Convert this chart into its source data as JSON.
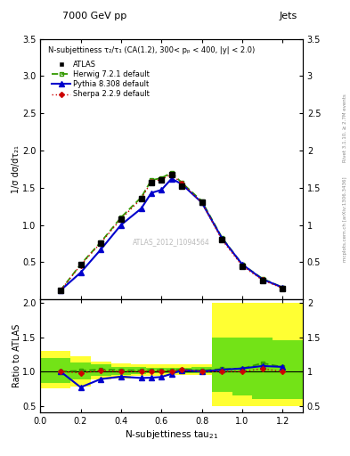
{
  "title_top": "7000 GeV pp",
  "title_right": "Jets",
  "annotation": "N-subjettiness τ₂/τ₁ (CA(1.2), 300< pₚ < 400, |y| < 2.0)",
  "watermark": "ATLAS_2012_I1094564",
  "right_label_top": "Rivet 3.1.10, ≥ 2.7M events",
  "right_label_bot": "mcplots.cern.ch [arXiv:1306.3436]",
  "xlabel": "N-subjettiness tau",
  "xlabel_sub": "21",
  "ylabel_main": "1/σ dσ/dτ₂₁",
  "ylabel_ratio": "Ratio to ATLAS",
  "x_data": [
    0.1,
    0.2,
    0.3,
    0.4,
    0.5,
    0.55,
    0.6,
    0.65,
    0.7,
    0.8,
    0.9,
    1.0,
    1.1,
    1.2
  ],
  "atlas_y": [
    0.12,
    0.47,
    0.75,
    1.08,
    1.35,
    1.57,
    1.6,
    1.68,
    1.52,
    1.3,
    0.8,
    0.45,
    0.25,
    0.15
  ],
  "herwig_y": [
    0.12,
    0.47,
    0.77,
    1.1,
    1.37,
    1.6,
    1.63,
    1.7,
    1.57,
    1.32,
    0.83,
    0.47,
    0.28,
    0.16
  ],
  "pythia_y": [
    0.12,
    0.36,
    0.67,
    1.0,
    1.22,
    1.43,
    1.47,
    1.62,
    1.55,
    1.3,
    0.82,
    0.47,
    0.27,
    0.16
  ],
  "sherpa_y": [
    0.12,
    0.46,
    0.76,
    1.08,
    1.35,
    1.58,
    1.61,
    1.68,
    1.56,
    1.3,
    0.8,
    0.45,
    0.26,
    0.15
  ],
  "herwig_ratio": [
    1.0,
    1.01,
    1.03,
    1.02,
    1.015,
    1.02,
    1.02,
    1.012,
    1.033,
    1.015,
    1.037,
    1.044,
    1.12,
    1.067
  ],
  "pythia_ratio": [
    1.0,
    0.77,
    0.89,
    0.925,
    0.905,
    0.91,
    0.92,
    0.965,
    1.02,
    1.0,
    1.025,
    1.044,
    1.08,
    1.067
  ],
  "sherpa_ratio": [
    1.0,
    0.98,
    1.01,
    1.0,
    1.0,
    1.006,
    1.006,
    1.0,
    1.026,
    1.0,
    1.0,
    1.0,
    1.04,
    1.0
  ],
  "x_band": [
    0.05,
    0.15,
    0.25,
    0.35,
    0.45,
    0.525,
    0.575,
    0.625,
    0.675,
    0.75,
    0.85,
    0.95,
    1.05,
    1.15,
    1.25
  ],
  "x_band_edges": [
    0.0,
    0.15,
    0.25,
    0.35,
    0.45,
    0.525,
    0.575,
    0.625,
    0.675,
    0.75,
    0.85,
    0.95,
    1.05,
    1.15,
    1.3
  ],
  "yellow_lo": [
    0.75,
    0.78,
    0.88,
    0.9,
    0.93,
    0.94,
    0.94,
    0.95,
    0.95,
    0.95,
    0.5,
    0.5,
    0.5,
    0.5
  ],
  "yellow_hi": [
    1.3,
    1.22,
    1.15,
    1.12,
    1.1,
    1.1,
    1.1,
    1.1,
    1.1,
    1.1,
    2.0,
    2.0,
    2.0,
    2.0
  ],
  "green_lo": [
    0.83,
    0.88,
    0.93,
    0.95,
    0.965,
    0.97,
    0.97,
    0.97,
    0.97,
    0.97,
    0.7,
    0.65,
    0.6,
    0.6
  ],
  "green_hi": [
    1.2,
    1.13,
    1.1,
    1.07,
    1.065,
    1.055,
    1.055,
    1.055,
    1.055,
    1.06,
    1.5,
    1.5,
    1.5,
    1.45
  ],
  "atlas_color": "#000000",
  "herwig_color": "#339900",
  "pythia_color": "#0000cc",
  "sherpa_color": "#cc0000",
  "ylim_main": [
    0,
    3.5
  ],
  "ylim_ratio": [
    0.4,
    2.05
  ],
  "yticks_main": [
    0.5,
    1.0,
    1.5,
    2.0,
    2.5,
    3.0,
    3.5
  ],
  "yticks_ratio": [
    0.5,
    1.0,
    1.5,
    2.0
  ],
  "xlim": [
    0,
    1.3
  ]
}
